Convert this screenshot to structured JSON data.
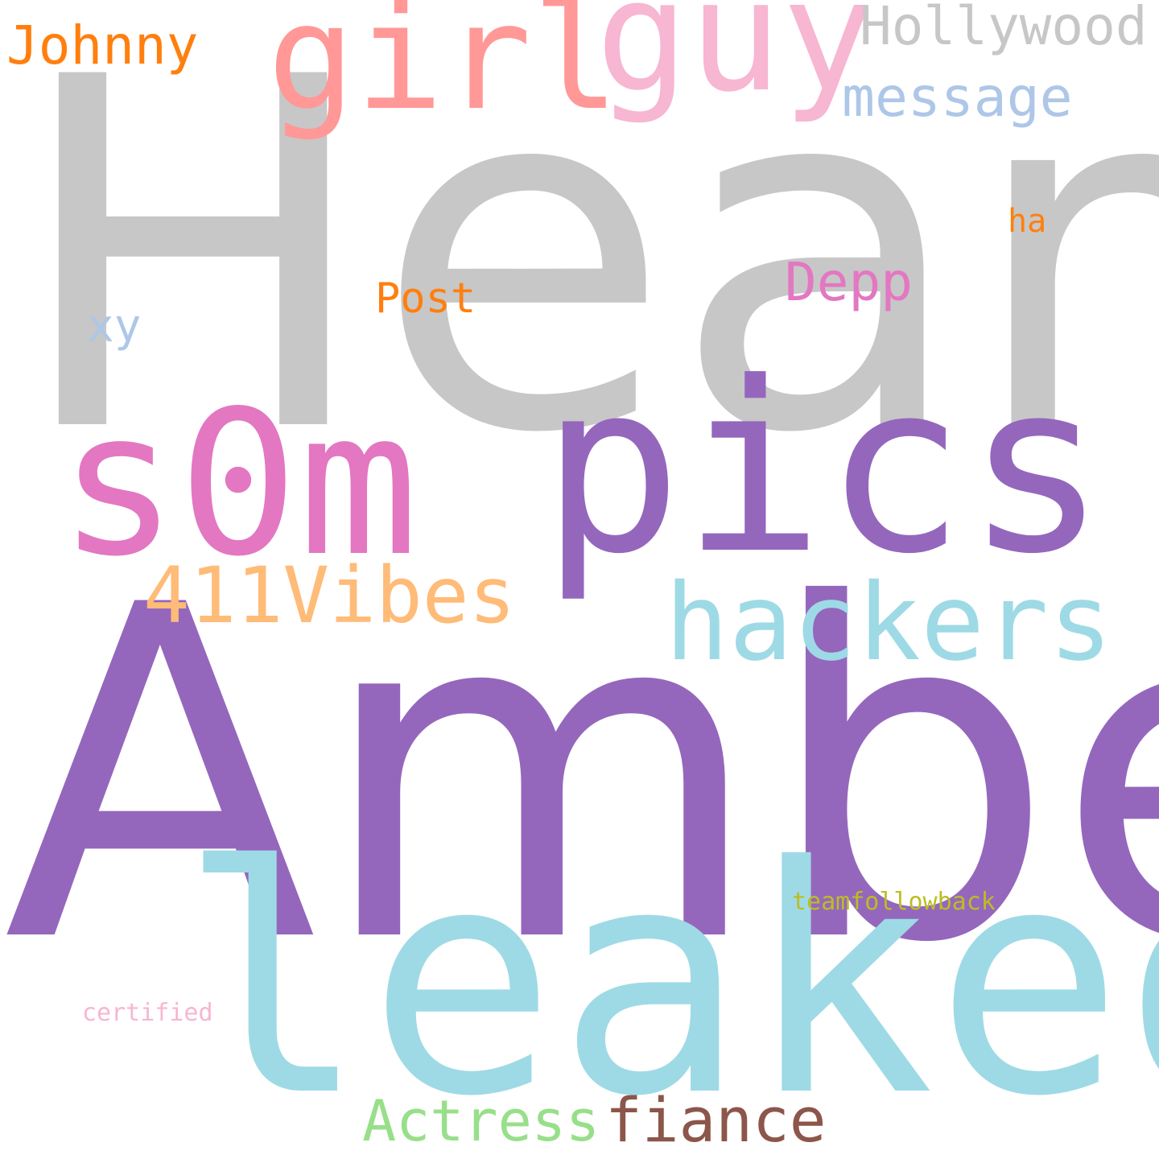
{
  "words": {
    "heard": {
      "text": "Heard",
      "color": "#c7c7c7"
    },
    "amber": {
      "text": "Amber",
      "color": "#9467bd"
    },
    "leaked": {
      "text": "leaked",
      "color": "#9edae5"
    },
    "s0m": {
      "text": "s0m",
      "color": "#e377c2"
    },
    "pics": {
      "text": "pics",
      "color": "#9467bd"
    },
    "girl": {
      "text": "girl",
      "color": "#ff9896"
    },
    "guy": {
      "text": "guy",
      "color": "#f7b6d2"
    },
    "hollywood": {
      "text": "Hollywood",
      "color": "#c7c7c7"
    },
    "johnny": {
      "text": "Johnny",
      "color": "#ff7f0e"
    },
    "message": {
      "text": "message",
      "color": "#aec7e8"
    },
    "ha": {
      "text": "ha",
      "color": "#ff7f0e"
    },
    "depp": {
      "text": "Depp",
      "color": "#e377c2"
    },
    "post": {
      "text": "Post",
      "color": "#ff7f0e"
    },
    "xy": {
      "text": "xy",
      "color": "#aec7e8"
    },
    "vibes": {
      "text": "411Vibes",
      "color": "#ffbb78"
    },
    "hackers": {
      "text": "hackers",
      "color": "#9edae5"
    },
    "teamfb": {
      "text": "teamfollowback",
      "color": "#bcbd22"
    },
    "certified": {
      "text": "certified",
      "color": "#f7b6d2"
    },
    "actress": {
      "text": "Actress",
      "color": "#98df8a"
    },
    "fiance": {
      "text": "fiance",
      "color": "#8c564b"
    }
  }
}
